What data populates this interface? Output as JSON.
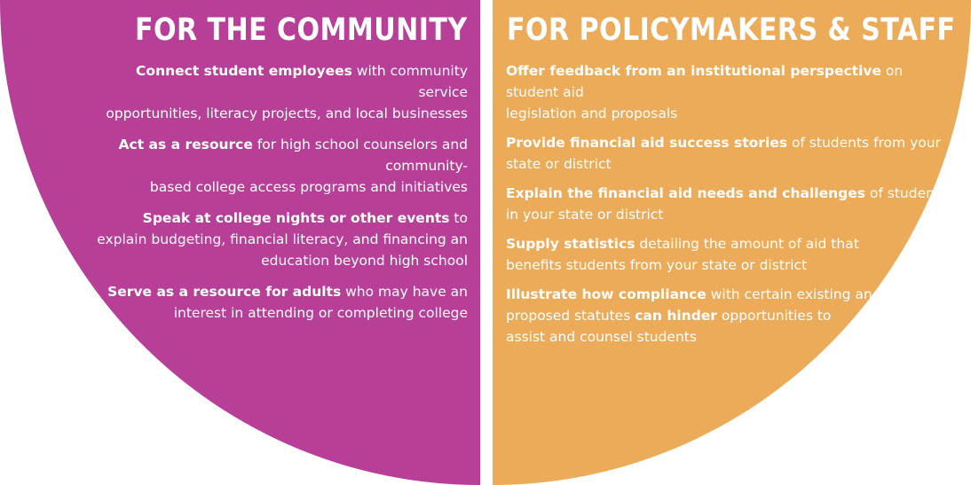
{
  "colors": {
    "community": "#b83f98",
    "policy": "#ecab59",
    "background": "#ffffff"
  },
  "community": {
    "title": "FOR THE COMMUNITY",
    "items": [
      [
        {
          "text": "Connect student employees",
          "bold": true
        },
        {
          "text": " with community service",
          "bold": false
        },
        {
          "br": true
        },
        {
          "text": "opportunities, literacy projects, and local businesses",
          "bold": false
        }
      ],
      [
        {
          "text": "Act as a resource",
          "bold": true
        },
        {
          "text": " for high school counselors and community-",
          "bold": false
        },
        {
          "br": true
        },
        {
          "text": "based college access programs and initiatives",
          "bold": false
        }
      ],
      [
        {
          "text": "Speak at college nights or other events",
          "bold": true
        },
        {
          "text": " to",
          "bold": false
        },
        {
          "br": true
        },
        {
          "text": "explain budgeting, financial literacy, and financing an",
          "bold": false
        },
        {
          "br": true
        },
        {
          "text": "education beyond high school",
          "bold": false
        }
      ],
      [
        {
          "text": "Serve as a resource for adults",
          "bold": true
        },
        {
          "text": " who may have an",
          "bold": false
        },
        {
          "br": true
        },
        {
          "text": "interest in attending or completing college",
          "bold": false
        }
      ]
    ]
  },
  "policy": {
    "title": "FOR POLICYMAKERS & STAFF",
    "items": [
      [
        {
          "text": "Offer feedback from an institutional perspective",
          "bold": true
        },
        {
          "text": " on student aid",
          "bold": false
        },
        {
          "br": true
        },
        {
          "text": "legislation and proposals",
          "bold": false
        }
      ],
      [
        {
          "text": "Provide financial aid success stories",
          "bold": true
        },
        {
          "text": " of students from your",
          "bold": false
        },
        {
          "br": true
        },
        {
          "text": "state or district",
          "bold": false
        }
      ],
      [
        {
          "text": "Explain the financial aid needs and challenges",
          "bold": true
        },
        {
          "text": " of students",
          "bold": false
        },
        {
          "br": true
        },
        {
          "text": "in your state or district",
          "bold": false
        }
      ],
      [
        {
          "text": "Supply statistics",
          "bold": true
        },
        {
          "text": " detailing the amount of aid that",
          "bold": false
        },
        {
          "br": true
        },
        {
          "text": "benefits students from your state or district",
          "bold": false
        }
      ],
      [
        {
          "text": "Illustrate how compliance",
          "bold": true
        },
        {
          "text": " with certain existing and",
          "bold": false
        },
        {
          "br": true
        },
        {
          "text": "proposed statutes ",
          "bold": false
        },
        {
          "text": "can hinder",
          "bold": true
        },
        {
          "text": " opportunities to",
          "bold": false
        },
        {
          "br": true
        },
        {
          "text": "assist and counsel students",
          "bold": false
        }
      ]
    ]
  }
}
